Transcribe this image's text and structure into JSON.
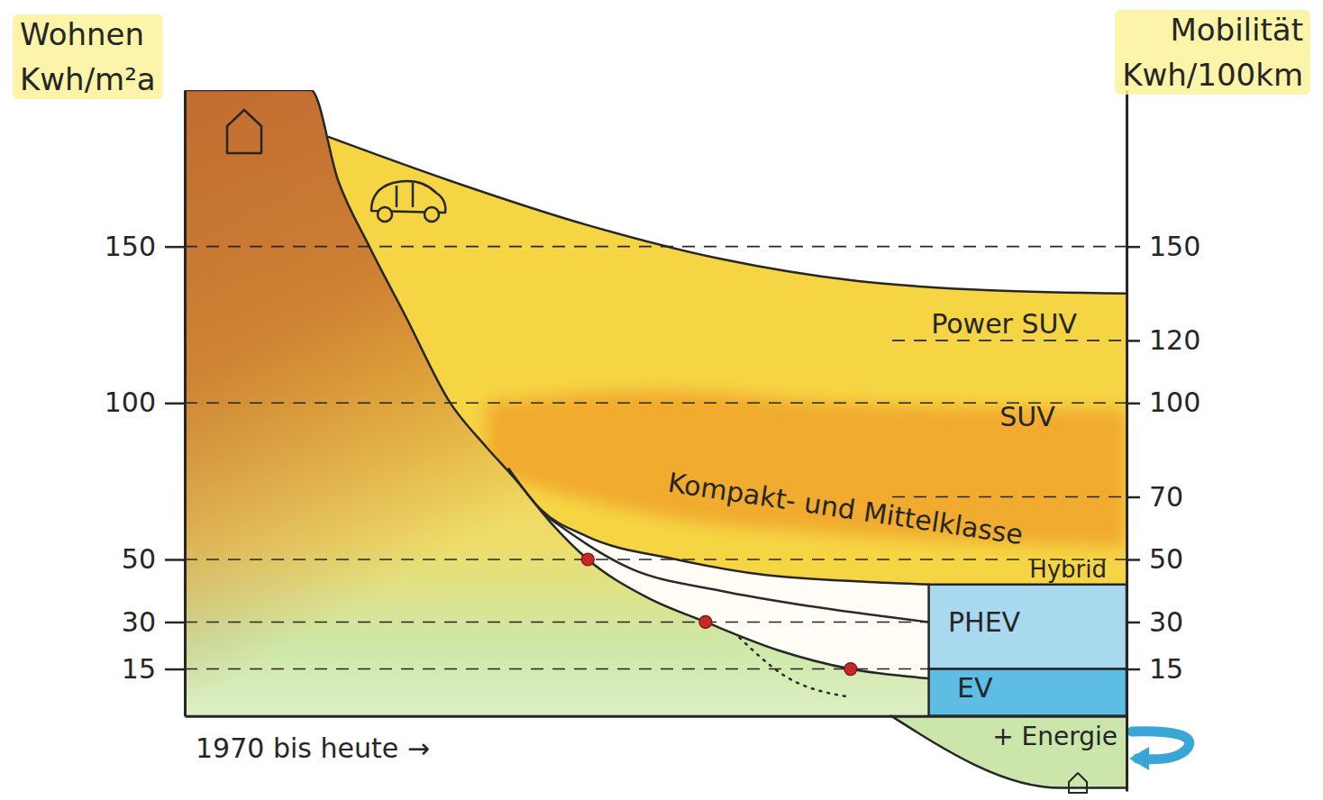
{
  "chart_data": {
    "type": "area",
    "ylabel": "Wohnen Kwh/m²a",
    "y2label": "Mobilität Kwh/100km",
    "xlabel": "1970 bis heute →",
    "xlim": [
      0,
      100
    ],
    "xticks": [],
    "ylim": [
      0,
      200
    ],
    "yticks": [
      150,
      100,
      50,
      30,
      15
    ],
    "y2lim": [
      -24,
      200
    ],
    "y2ticks": [
      150,
      120,
      100,
      70,
      50,
      30,
      15
    ],
    "grid": true,
    "series": [
      {
        "type": "area",
        "axis": "y2",
        "color": "#f6d33a",
        "x": [
          15.3,
          28.2,
          42.6,
          57,
          71.3,
          85.6,
          100
        ],
        "values": [
          185,
          171,
          157,
          146,
          139,
          136,
          135
        ]
      },
      {
        "type": "band",
        "axis": "y2",
        "color": "#f0a32a",
        "x": [
          32,
          50,
          70,
          100
        ],
        "low": [
          78,
          64,
          58,
          54
        ],
        "high": [
          100,
          104,
          100,
          98
        ]
      },
      {
        "type": "area",
        "axis": "y2",
        "color": "#ffffff",
        "x": [
          34.4,
          37.8,
          42.6,
          52.2,
          61.7,
          71.3,
          79
        ],
        "values": [
          79,
          66,
          57.5,
          50,
          45,
          43,
          42
        ]
      },
      {
        "type": "area",
        "axis": "y",
        "color": "#c06a30",
        "x": [
          0,
          13.4,
          16.3,
          19.6,
          23.4,
          28.2,
          32,
          35,
          38.8,
          42.8,
          49,
          55.3,
          63,
          70.7,
          79
        ],
        "values": [
          200,
          200,
          171,
          150,
          128,
          100,
          86,
          76,
          62,
          50,
          38,
          30,
          21,
          15,
          12
        ]
      },
      {
        "type": "area",
        "axis": "y2",
        "color": "#c9e4a6",
        "x": [
          75,
          93,
          100
        ],
        "values": [
          0,
          -23,
          -23
        ]
      },
      {
        "type": "line",
        "axis": "y2",
        "color": "#2a2a2a",
        "line_style": "solid",
        "x": [
          38.3,
          47.4,
          56.9,
          66.5,
          79
        ],
        "values": [
          64,
          47,
          40,
          35,
          30
        ]
      },
      {
        "type": "line",
        "axis": "y",
        "color": "#2a2a2a",
        "line_style": "dotted",
        "x": [
          58.9,
          63.6,
          70.7
        ],
        "values": [
          25,
          13,
          6
        ]
      },
      {
        "type": "scatter",
        "axis": "y",
        "color": "#c62828",
        "marker": "circle",
        "x": [
          42.8,
          55.3,
          70.7
        ],
        "values": [
          50,
          30,
          15
        ]
      }
    ],
    "vehicle_classes": [
      {
        "label": "Power SUV",
        "value": 120
      },
      {
        "label": "SUV",
        "value": 100
      },
      {
        "label": "Kompakt- und Mittelklasse",
        "value": 70
      },
      {
        "label": "Hybrid",
        "value": 50
      },
      {
        "label": "PHEV",
        "value": 30
      },
      {
        "label": "EV",
        "value": 15
      }
    ],
    "boxes": [
      {
        "x": [
          79,
          100
        ],
        "range": [
          15,
          42
        ],
        "color": "#a9d9ee"
      },
      {
        "x": [
          79,
          100
        ],
        "range": [
          0,
          15
        ],
        "color": "#5dbde3"
      }
    ],
    "energy_label": "+ Energie"
  }
}
